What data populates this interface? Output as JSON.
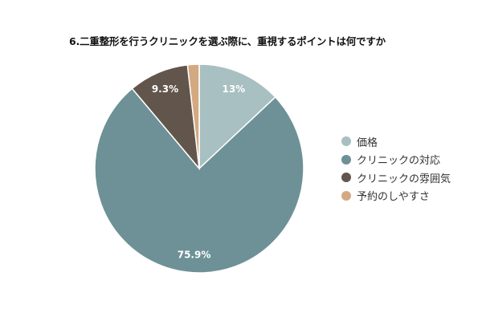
{
  "chart_data": {
    "type": "pie",
    "title": "6.二重整形を行うクリニックを選ぶ際に、重視するポイントは何ですか",
    "legend_position": "right",
    "slices": [
      {
        "name": "価格",
        "value": 13.0,
        "label": "13%",
        "color": "#a8c0c1"
      },
      {
        "name": "クリニックの対応",
        "value": 75.9,
        "label": "75.9%",
        "color": "#6d9196"
      },
      {
        "name": "クリニックの雰囲気",
        "value": 9.3,
        "label": "9.3%",
        "color": "#62564c"
      },
      {
        "name": "予約のしやすさ",
        "value": 1.8,
        "label": "",
        "color": "#d4a982"
      }
    ]
  }
}
